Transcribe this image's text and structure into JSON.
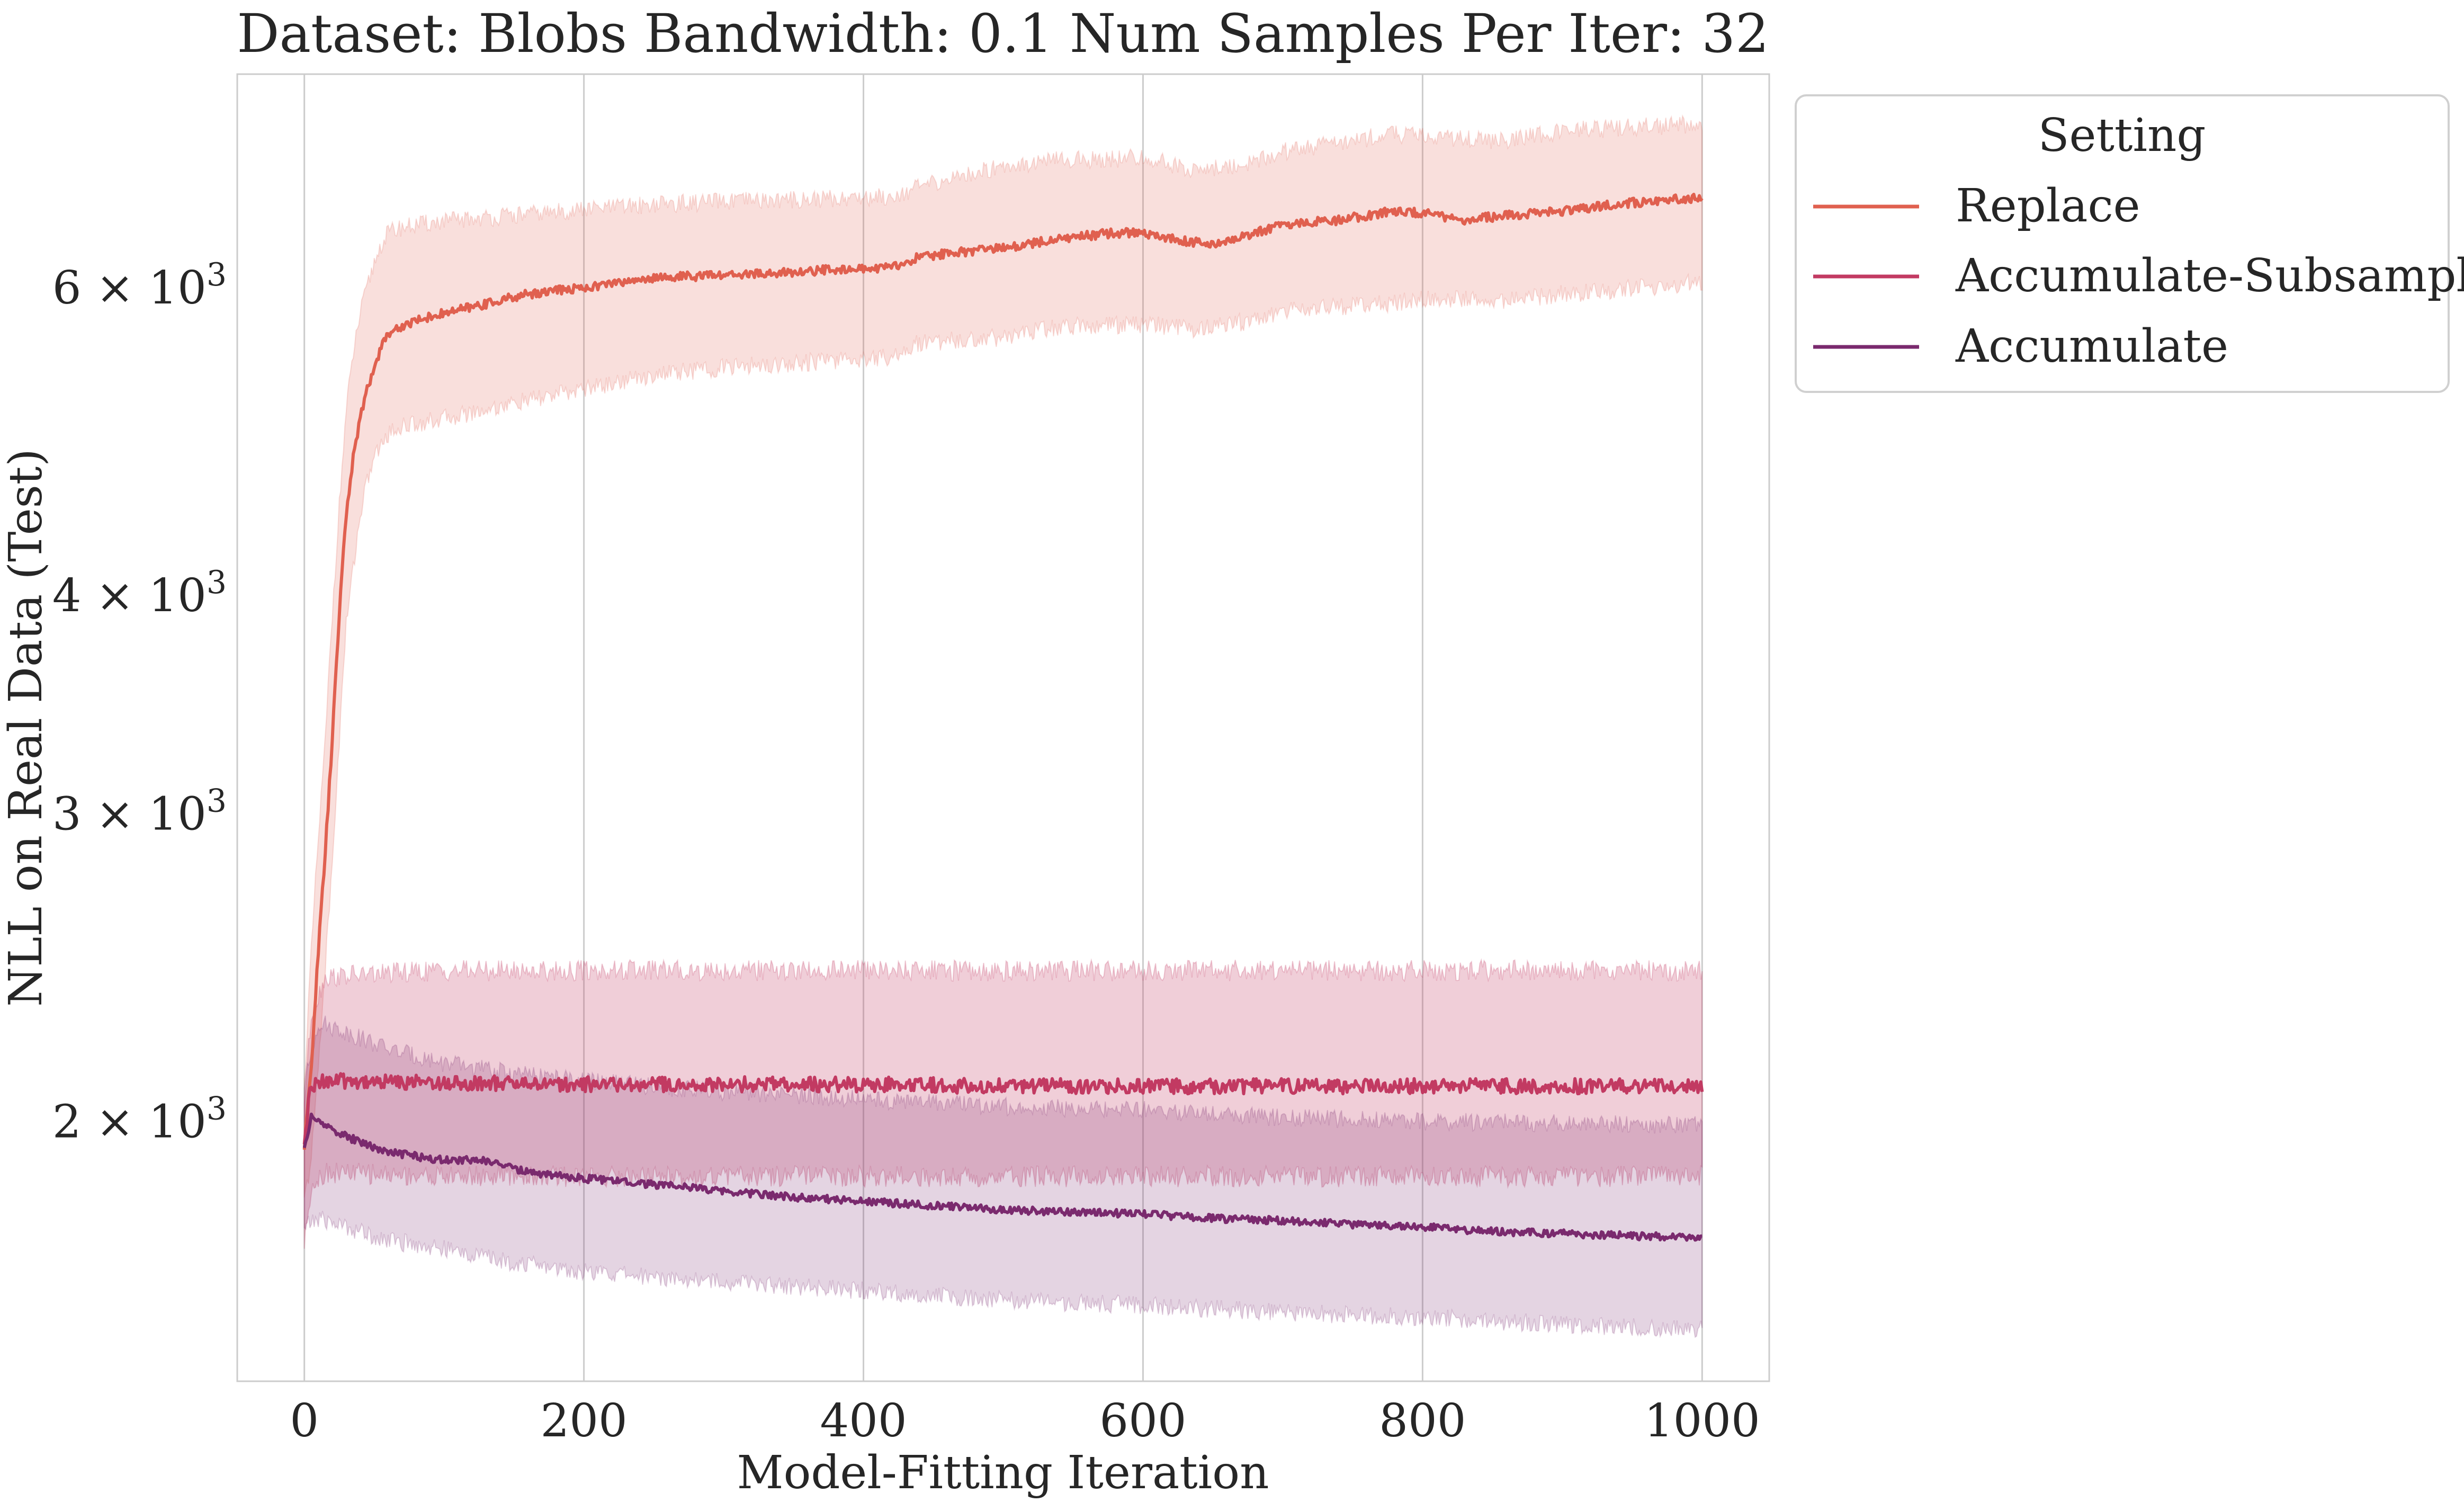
{
  "chart_data": {
    "type": "line",
    "title": "Dataset: Blobs Bandwidth: 0.1 Num Samples Per Iter: 32",
    "xlabel": "Model-Fitting Iteration",
    "ylabel": "NLL on Real Data (Test)",
    "xlim": [
      -48,
      1048
    ],
    "ylim": [
      1420,
      7950
    ],
    "yscale": "log",
    "grid": "vertical",
    "x_ticks": [
      0,
      200,
      400,
      600,
      800,
      1000
    ],
    "x_tick_labels": [
      "0",
      "200",
      "400",
      "600",
      "800",
      "1000"
    ],
    "y_ticks": [
      2000,
      3000,
      4000,
      6000
    ],
    "y_tick_labels": [
      {
        "mant": "2",
        "exp": "3"
      },
      {
        "mant": "3",
        "exp": "3"
      },
      {
        "mant": "4",
        "exp": "3"
      },
      {
        "mant": "6",
        "exp": "3"
      }
    ],
    "legend": {
      "title": "Setting",
      "placement": "outside-right"
    },
    "series": [
      {
        "name": "Replace",
        "color": "#e0604f",
        "mean": [
          [
            0,
            1930
          ],
          [
            5,
            2150
          ],
          [
            10,
            2500
          ],
          [
            15,
            2850
          ],
          [
            20,
            3300
          ],
          [
            25,
            3900
          ],
          [
            30,
            4450
          ],
          [
            35,
            4800
          ],
          [
            40,
            5050
          ],
          [
            45,
            5250
          ],
          [
            50,
            5400
          ],
          [
            55,
            5550
          ],
          [
            60,
            5650
          ],
          [
            70,
            5700
          ],
          [
            80,
            5750
          ],
          [
            100,
            5800
          ],
          [
            120,
            5850
          ],
          [
            140,
            5900
          ],
          [
            160,
            5950
          ],
          [
            180,
            5980
          ],
          [
            200,
            6000
          ],
          [
            250,
            6080
          ],
          [
            300,
            6100
          ],
          [
            350,
            6120
          ],
          [
            380,
            6150
          ],
          [
            400,
            6150
          ],
          [
            420,
            6160
          ],
          [
            440,
            6250
          ],
          [
            480,
            6300
          ],
          [
            500,
            6320
          ],
          [
            540,
            6400
          ],
          [
            580,
            6450
          ],
          [
            600,
            6450
          ],
          [
            630,
            6380
          ],
          [
            650,
            6350
          ],
          [
            680,
            6450
          ],
          [
            700,
            6520
          ],
          [
            740,
            6560
          ],
          [
            780,
            6640
          ],
          [
            800,
            6620
          ],
          [
            830,
            6560
          ],
          [
            860,
            6600
          ],
          [
            900,
            6640
          ],
          [
            940,
            6700
          ],
          [
            980,
            6740
          ],
          [
            1000,
            6760
          ]
        ],
        "upper": [
          [
            0,
            2100
          ],
          [
            5,
            2500
          ],
          [
            10,
            2900
          ],
          [
            15,
            3300
          ],
          [
            20,
            3900
          ],
          [
            25,
            4500
          ],
          [
            30,
            5100
          ],
          [
            35,
            5500
          ],
          [
            40,
            5800
          ],
          [
            45,
            6000
          ],
          [
            50,
            6200
          ],
          [
            55,
            6350
          ],
          [
            60,
            6450
          ],
          [
            70,
            6500
          ],
          [
            100,
            6550
          ],
          [
            150,
            6600
          ],
          [
            200,
            6650
          ],
          [
            250,
            6700
          ],
          [
            300,
            6720
          ],
          [
            380,
            6750
          ],
          [
            420,
            6770
          ],
          [
            440,
            6850
          ],
          [
            500,
            7050
          ],
          [
            540,
            7100
          ],
          [
            600,
            7120
          ],
          [
            640,
            7000
          ],
          [
            680,
            7080
          ],
          [
            700,
            7180
          ],
          [
            780,
            7350
          ],
          [
            800,
            7330
          ],
          [
            860,
            7280
          ],
          [
            900,
            7380
          ],
          [
            960,
            7420
          ],
          [
            1000,
            7450
          ]
        ],
        "lower": [
          [
            0,
            1800
          ],
          [
            5,
            1900
          ],
          [
            10,
            2150
          ],
          [
            15,
            2450
          ],
          [
            20,
            2800
          ],
          [
            25,
            3300
          ],
          [
            30,
            3850
          ],
          [
            35,
            4150
          ],
          [
            40,
            4450
          ],
          [
            45,
            4650
          ],
          [
            50,
            4800
          ],
          [
            60,
            4950
          ],
          [
            70,
            5000
          ],
          [
            100,
            5050
          ],
          [
            150,
            5150
          ],
          [
            200,
            5250
          ],
          [
            250,
            5350
          ],
          [
            300,
            5400
          ],
          [
            380,
            5450
          ],
          [
            420,
            5480
          ],
          [
            440,
            5580
          ],
          [
            500,
            5620
          ],
          [
            540,
            5700
          ],
          [
            600,
            5720
          ],
          [
            640,
            5680
          ],
          [
            680,
            5750
          ],
          [
            700,
            5820
          ],
          [
            780,
            5880
          ],
          [
            800,
            5920
          ],
          [
            860,
            5900
          ],
          [
            900,
            5950
          ],
          [
            960,
            6000
          ],
          [
            1000,
            6050
          ]
        ]
      },
      {
        "name": "Accumulate-Subsample",
        "color": "#c23a62",
        "mean": [
          [
            0,
            1930
          ],
          [
            4,
            2080
          ],
          [
            10,
            2110
          ],
          [
            100,
            2105
          ],
          [
            200,
            2100
          ],
          [
            300,
            2100
          ],
          [
            400,
            2100
          ],
          [
            500,
            2095
          ],
          [
            600,
            2095
          ],
          [
            700,
            2095
          ],
          [
            800,
            2095
          ],
          [
            900,
            2095
          ],
          [
            1000,
            2095
          ]
        ],
        "upper": [
          [
            0,
            2050
          ],
          [
            5,
            2300
          ],
          [
            15,
            2420
          ],
          [
            100,
            2440
          ],
          [
            300,
            2440
          ],
          [
            500,
            2440
          ],
          [
            700,
            2440
          ],
          [
            900,
            2440
          ],
          [
            1000,
            2440
          ]
        ],
        "lower": [
          [
            0,
            1700
          ],
          [
            5,
            1840
          ],
          [
            15,
            1870
          ],
          [
            100,
            1860
          ],
          [
            300,
            1860
          ],
          [
            500,
            1860
          ],
          [
            700,
            1860
          ],
          [
            900,
            1860
          ],
          [
            1000,
            1860
          ]
        ]
      },
      {
        "name": "Accumulate",
        "color": "#7a2a6e",
        "mean": [
          [
            0,
            1930
          ],
          [
            5,
            2010
          ],
          [
            10,
            2000
          ],
          [
            30,
            1960
          ],
          [
            60,
            1920
          ],
          [
            100,
            1900
          ],
          [
            130,
            1900
          ],
          [
            160,
            1870
          ],
          [
            200,
            1855
          ],
          [
            250,
            1840
          ],
          [
            300,
            1825
          ],
          [
            350,
            1810
          ],
          [
            400,
            1800
          ],
          [
            450,
            1790
          ],
          [
            500,
            1780
          ],
          [
            550,
            1775
          ],
          [
            600,
            1770
          ],
          [
            650,
            1760
          ],
          [
            700,
            1755
          ],
          [
            750,
            1745
          ],
          [
            800,
            1740
          ],
          [
            850,
            1730
          ],
          [
            900,
            1725
          ],
          [
            950,
            1720
          ],
          [
            1000,
            1715
          ]
        ],
        "upper": [
          [
            0,
            2100
          ],
          [
            10,
            2280
          ],
          [
            30,
            2250
          ],
          [
            60,
            2200
          ],
          [
            100,
            2160
          ],
          [
            150,
            2130
          ],
          [
            200,
            2110
          ],
          [
            300,
            2080
          ],
          [
            400,
            2060
          ],
          [
            500,
            2040
          ],
          [
            600,
            2030
          ],
          [
            700,
            2010
          ],
          [
            800,
            2000
          ],
          [
            900,
            1995
          ],
          [
            1000,
            1990
          ]
        ],
        "lower": [
          [
            0,
            1740
          ],
          [
            10,
            1760
          ],
          [
            30,
            1740
          ],
          [
            60,
            1710
          ],
          [
            100,
            1690
          ],
          [
            150,
            1660
          ],
          [
            200,
            1640
          ],
          [
            300,
            1620
          ],
          [
            400,
            1600
          ],
          [
            500,
            1580
          ],
          [
            600,
            1570
          ],
          [
            700,
            1555
          ],
          [
            800,
            1545
          ],
          [
            900,
            1530
          ],
          [
            1000,
            1520
          ]
        ]
      }
    ]
  }
}
